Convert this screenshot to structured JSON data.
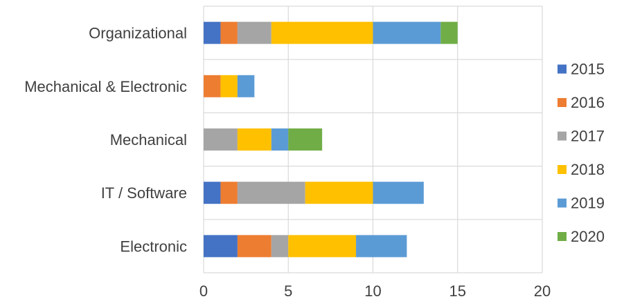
{
  "chart_data": {
    "type": "bar",
    "orientation": "horizontal",
    "stacked": true,
    "title": "",
    "xlabel": "",
    "ylabel": "",
    "categories": [
      "Organizational",
      "Mechanical & Electronic",
      "Mechanical",
      "IT / Software",
      "Electronic"
    ],
    "xlim": [
      0,
      20
    ],
    "xticks": [
      "0",
      "5",
      "10",
      "15",
      "20"
    ],
    "grid": true,
    "legend_position": "right",
    "series": [
      {
        "name": "2015",
        "color": "#4472C4",
        "values": [
          1,
          0,
          0,
          1,
          2
        ]
      },
      {
        "name": "2016",
        "color": "#ED7D31",
        "values": [
          1,
          1,
          0,
          1,
          2
        ]
      },
      {
        "name": "2017",
        "color": "#A5A5A5",
        "values": [
          2,
          0,
          2,
          4,
          1
        ]
      },
      {
        "name": "2018",
        "color": "#FFC000",
        "values": [
          6,
          1,
          2,
          4,
          4
        ]
      },
      {
        "name": "2019",
        "color": "#5B9BD5",
        "values": [
          4,
          1,
          1,
          3,
          3
        ]
      },
      {
        "name": "2020",
        "color": "#70AD47",
        "values": [
          1,
          0,
          2,
          0,
          0
        ]
      }
    ]
  }
}
